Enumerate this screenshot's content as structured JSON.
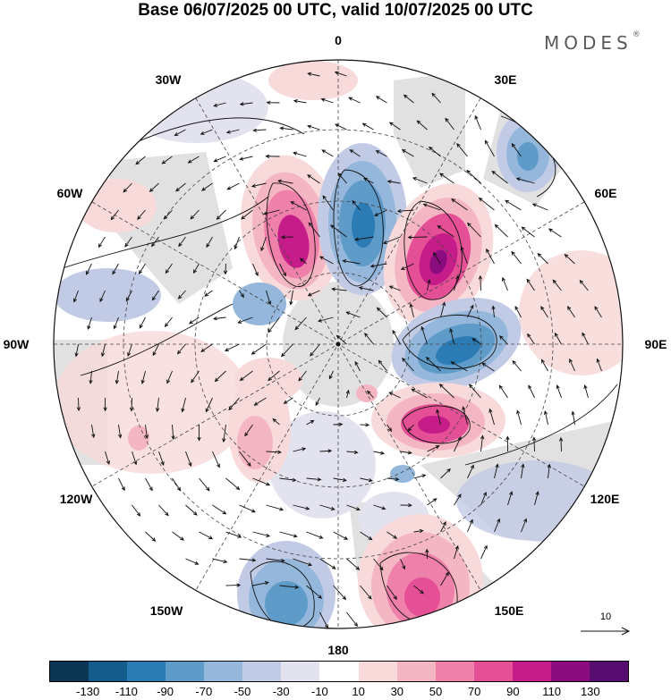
{
  "title": "Base 06/07/2025 00 UTC, valid 10/07/2025 00 UTC",
  "brand": "MODES",
  "brand_mark": "®",
  "longitude_labels": {
    "top": "0",
    "top_left": "30W",
    "top_right": "30E",
    "upper_left": "60W",
    "upper_right": "60E",
    "left": "90W",
    "right": "90E",
    "lower_left": "120W",
    "lower_right": "120E",
    "bottom_left": "150W",
    "bottom_right": "150E",
    "bottom": "180"
  },
  "reference_vector_label": "10",
  "colorbar": {
    "colors": [
      "#0b3552",
      "#125b8a",
      "#2b7bb5",
      "#5e9bc9",
      "#94b7db",
      "#c2cbe5",
      "#e3e3f0",
      "#ffffff",
      "#f8dada",
      "#f5b6c3",
      "#ee80aa",
      "#e44f95",
      "#c61c89",
      "#8b0c7e",
      "#570c70"
    ],
    "tick_labels": [
      "-130",
      "-110",
      "-90",
      "-70",
      "-50",
      "-30",
      "-10",
      "10",
      "30",
      "50",
      "70",
      "90",
      "110",
      "130"
    ]
  },
  "map": {
    "projection": "south-polar-stereographic",
    "field_palette_note_colors": {
      "positive": "#e0559a",
      "negative": "#3f86c0",
      "land": "#c9c9c9"
    }
  }
}
